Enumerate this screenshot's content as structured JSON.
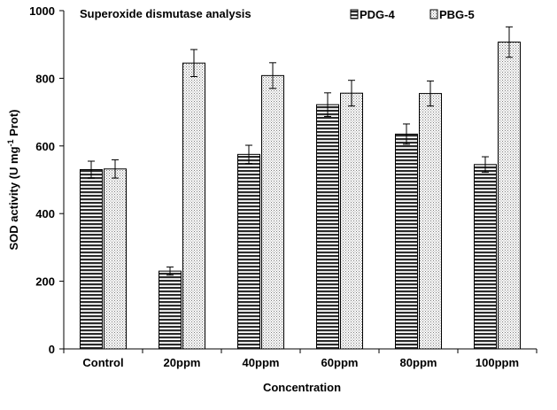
{
  "chart_data": {
    "type": "bar",
    "title": "Superoxide dismutase analysis",
    "xlabel": "Concentration",
    "ylabel_prefix": "SOD activity (U mg",
    "ylabel_sup": "-1",
    "ylabel_suffix": " Prot)",
    "ylim": [
      0,
      1000
    ],
    "yticks": [
      "0",
      "200",
      "400",
      "600",
      "800",
      "1000"
    ],
    "ytick_values": [
      0,
      200,
      400,
      600,
      800,
      1000
    ],
    "categories": [
      "Control",
      "20ppm",
      "40ppm",
      "60ppm",
      "80ppm",
      "100ppm"
    ],
    "legend_position": "top-right",
    "series": [
      {
        "name": "PDG-4",
        "pattern": "horizontal-stripes",
        "values": [
          530,
          230,
          575,
          722,
          635,
          545
        ],
        "errors": [
          25,
          12,
          27,
          35,
          30,
          23
        ]
      },
      {
        "name": "PBG-5",
        "pattern": "dots",
        "values": [
          532,
          845,
          808,
          756,
          755,
          907
        ],
        "errors": [
          27,
          40,
          38,
          38,
          37,
          45
        ]
      }
    ]
  }
}
